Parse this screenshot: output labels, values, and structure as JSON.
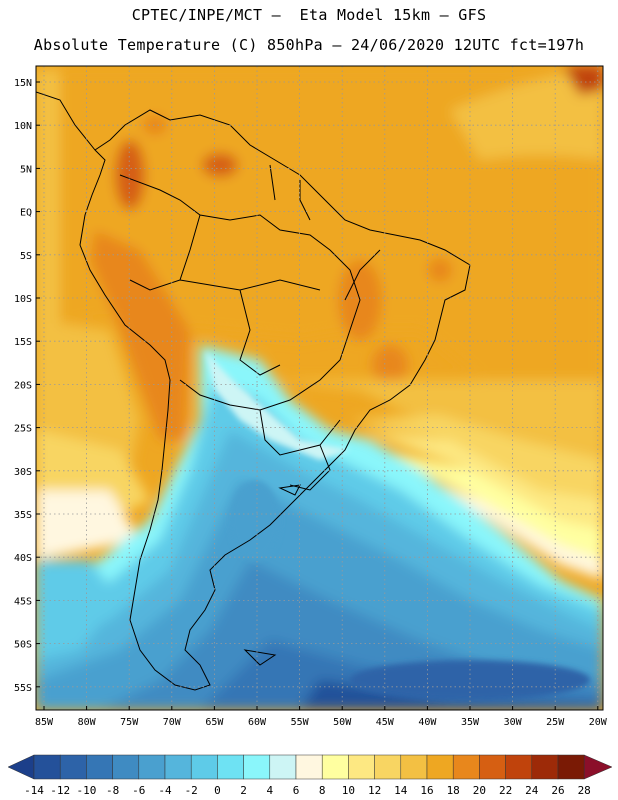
{
  "title_line1": "CPTEC/INPE/MCT –  Eta Model 15km – GFS",
  "title_line2": "Absolute Temperature (C) 850hPa – 24/06/2020 12UTC fct=197h",
  "lat_labels": [
    "15N",
    "10N",
    "5N",
    "EQ",
    "5S",
    "10S",
    "15S",
    "20S",
    "25S",
    "30S",
    "35S",
    "40S",
    "45S",
    "50S",
    "55S"
  ],
  "lon_labels": [
    "85W",
    "80W",
    "75W",
    "70W",
    "65W",
    "60W",
    "55W",
    "50W",
    "45W",
    "40W",
    "35W",
    "30W",
    "25W",
    "20W"
  ],
  "colorbar": {
    "labels": [
      "-14",
      "-12",
      "-10",
      "-8",
      "-6",
      "-4",
      "-2",
      "0",
      "2",
      "4",
      "6",
      "8",
      "10",
      "12",
      "14",
      "16",
      "18",
      "20",
      "22",
      "24",
      "26",
      "28"
    ],
    "colors": [
      "#1c3f8a",
      "#24519a",
      "#2d63a8",
      "#3576b5",
      "#3f8bc2",
      "#4aa0cf",
      "#55b5dc",
      "#5ecbe8",
      "#6ee2f3",
      "#8af6fb",
      "#cdf5f5",
      "#fff7e0",
      "#ffffa0",
      "#fde882",
      "#f8d562",
      "#f3c043",
      "#eea722",
      "#e8871c",
      "#d65f12",
      "#c0430c",
      "#9d2a08",
      "#7a1a05",
      "#8b0f2a"
    ]
  },
  "colors": {
    "grid": "#999999",
    "coast": "#000000"
  }
}
